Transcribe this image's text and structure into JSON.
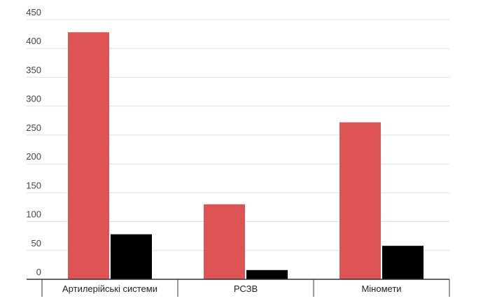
{
  "chart_data": {
    "type": "bar",
    "categories": [
      "Артилерійські системи",
      "РСЗВ",
      "Міномети"
    ],
    "series": [
      {
        "values": [
          428,
          130,
          272
        ],
        "color": "#de5353"
      },
      {
        "values": [
          78,
          16,
          58
        ],
        "color": "#000000"
      }
    ],
    "ylim": [
      0,
      450
    ],
    "yticks": [
      "0",
      "50",
      "100",
      "150",
      "200",
      "250",
      "300",
      "350",
      "400",
      "450"
    ],
    "grid": true,
    "legend": "none"
  }
}
